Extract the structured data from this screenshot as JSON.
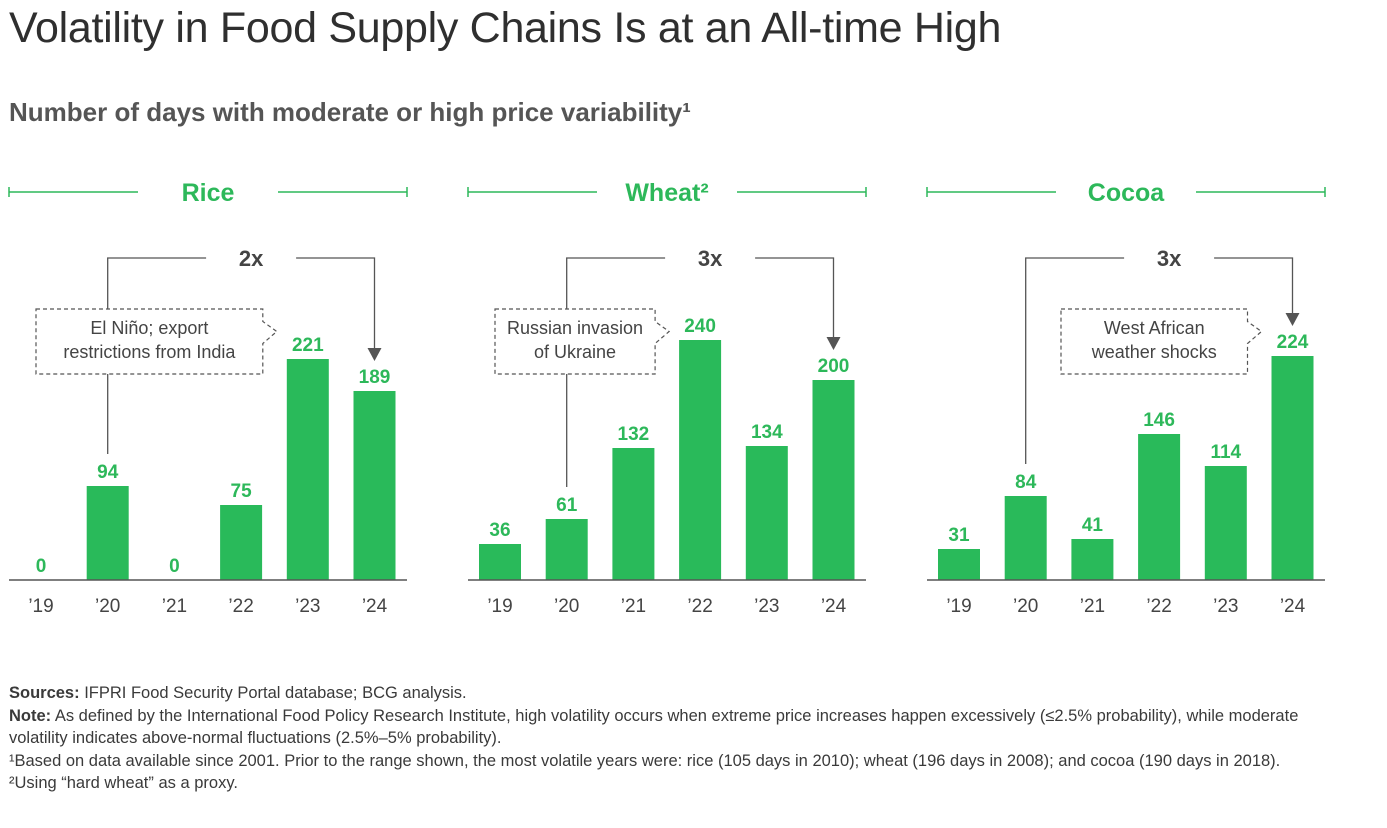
{
  "title": "Volatility in Food Supply Chains Is at an All-time High",
  "subtitle": "Number of days with moderate or high price variability¹",
  "colors": {
    "bar": "#29BA5A",
    "accent_text": "#2DB85A",
    "axis": "#555555",
    "connector": "#555555"
  },
  "chart_data": [
    {
      "type": "bar",
      "title": "Rice",
      "categories": [
        "’19",
        "’20",
        "’21",
        "’22",
        "’23",
        "’24"
      ],
      "values": [
        0,
        94,
        0,
        75,
        221,
        189
      ],
      "multiplier": "2x",
      "multiplier_from": 1,
      "multiplier_to": 5,
      "annotation": {
        "lines": [
          "El Niño; export",
          "restrictions from India"
        ],
        "points_to": 4
      }
    },
    {
      "type": "bar",
      "title": "Wheat²",
      "categories": [
        "’19",
        "’20",
        "’21",
        "’22",
        "’23",
        "’24"
      ],
      "values": [
        36,
        61,
        132,
        240,
        134,
        200
      ],
      "multiplier": "3x",
      "multiplier_from": 1,
      "multiplier_to": 5,
      "annotation": {
        "lines": [
          "Russian invasion",
          "of Ukraine"
        ],
        "points_to": 3
      }
    },
    {
      "type": "bar",
      "title": "Cocoa",
      "categories": [
        "’19",
        "’20",
        "’21",
        "’22",
        "’23",
        "’24"
      ],
      "values": [
        31,
        84,
        41,
        146,
        114,
        224
      ],
      "multiplier": "3x",
      "multiplier_from": 1,
      "multiplier_to": 5,
      "annotation": {
        "lines": [
          "West African",
          "weather shocks"
        ],
        "points_to": 5
      }
    }
  ],
  "notes": {
    "sources_label": "Sources:",
    "sources_text": " IFPRI Food Security Portal database; BCG analysis.",
    "note_label": "Note:",
    "note_text": " As defined by the International Food Policy Research Institute, high volatility occurs when extreme price increases happen excessively (≤2.5% probability), while moderate volatility indicates above-normal fluctuations (2.5%–5% probability).",
    "footnote1": "¹Based on data available since 2001. Prior to the range shown, the most volatile years were: rice (105 days in 2010); wheat (196 days in 2008); and cocoa (190 days in 2018).",
    "footnote2": "²Using “hard wheat” as a proxy."
  }
}
